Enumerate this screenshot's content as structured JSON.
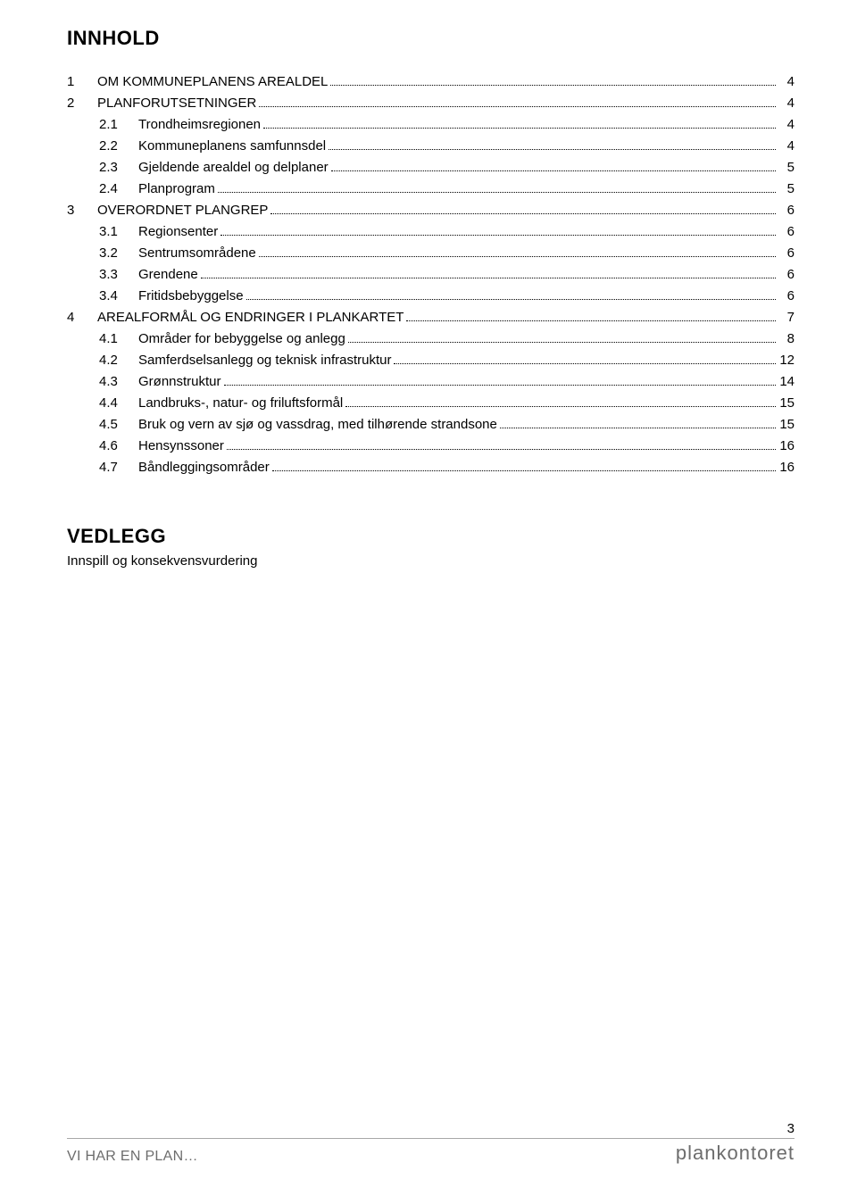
{
  "title1": "INNHOLD",
  "toc": [
    {
      "level": 1,
      "num": "1",
      "label": "OM KOMMUNEPLANENS AREALDEL",
      "page": "4"
    },
    {
      "level": 1,
      "num": "2",
      "label": "PLANFORUTSETNINGER",
      "page": "4"
    },
    {
      "level": 2,
      "num": "2.1",
      "label": "Trondheimsregionen",
      "page": "4"
    },
    {
      "level": 2,
      "num": "2.2",
      "label": "Kommuneplanens samfunnsdel",
      "page": "4"
    },
    {
      "level": 2,
      "num": "2.3",
      "label": "Gjeldende arealdel og delplaner",
      "page": "5"
    },
    {
      "level": 2,
      "num": "2.4",
      "label": "Planprogram",
      "page": "5"
    },
    {
      "level": 1,
      "num": "3",
      "label": "OVERORDNET PLANGREP",
      "page": "6"
    },
    {
      "level": 2,
      "num": "3.1",
      "label": "Regionsenter",
      "page": "6"
    },
    {
      "level": 2,
      "num": "3.2",
      "label": "Sentrumsområdene",
      "page": "6"
    },
    {
      "level": 2,
      "num": "3.3",
      "label": "Grendene",
      "page": "6"
    },
    {
      "level": 2,
      "num": "3.4",
      "label": "Fritidsbebyggelse",
      "page": "6"
    },
    {
      "level": 1,
      "num": "4",
      "label": "AREALFORMÅL OG ENDRINGER I PLANKARTET",
      "page": "7"
    },
    {
      "level": 2,
      "num": "4.1",
      "label": "Områder for bebyggelse og anlegg",
      "page": "8"
    },
    {
      "level": 2,
      "num": "4.2",
      "label": "Samferdselsanlegg og teknisk infrastruktur",
      "page": "12"
    },
    {
      "level": 2,
      "num": "4.3",
      "label": "Grønnstruktur",
      "page": "14"
    },
    {
      "level": 2,
      "num": "4.4",
      "label": "Landbruks-, natur- og friluftsformål",
      "page": "15"
    },
    {
      "level": 2,
      "num": "4.5",
      "label": "Bruk og vern av sjø og vassdrag, med tilhørende strandsone",
      "page": "15"
    },
    {
      "level": 2,
      "num": "4.6",
      "label": "Hensynssoner",
      "page": "16"
    },
    {
      "level": 2,
      "num": "4.7",
      "label": "Båndleggingsområder",
      "page": "16"
    }
  ],
  "title2": "VEDLEGG",
  "subtitle2": "Innspill og konsekvensvurdering",
  "footer": {
    "page_number": "3",
    "left_text": "VI HAR EN PLAN…",
    "right_text": "plankontoret"
  },
  "colors": {
    "text": "#000000",
    "footer_text": "#6d6d6d",
    "footer_rule": "#a8a8a8",
    "background": "#ffffff"
  }
}
